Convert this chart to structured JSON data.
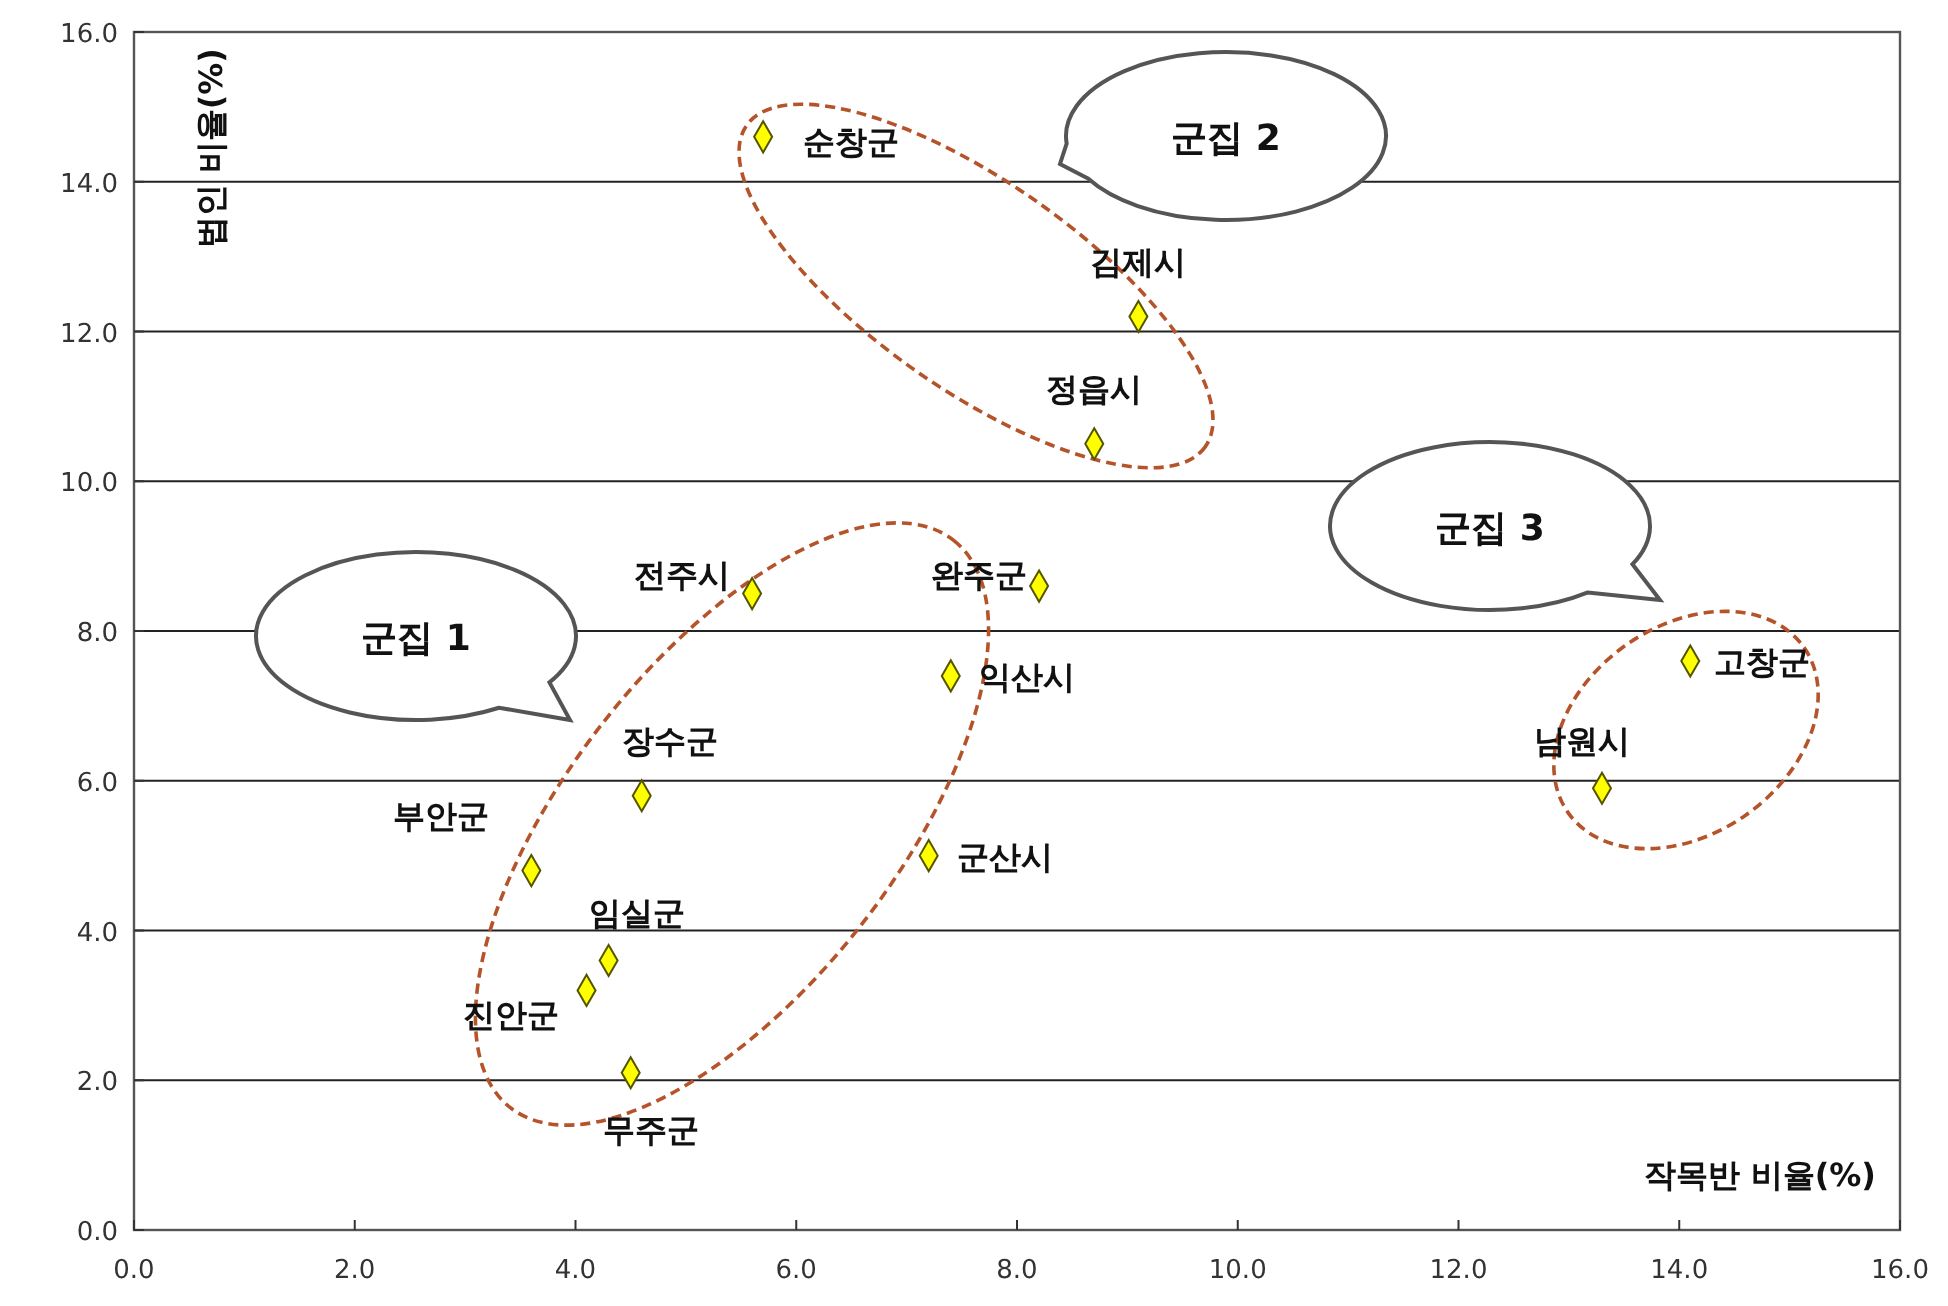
{
  "chart_data": {
    "type": "scatter",
    "xlabel": "작목반 비율(%)",
    "ylabel": "법인 비율(%)",
    "xlim": [
      0,
      16
    ],
    "ylim": [
      0,
      16
    ],
    "xticks": [
      {
        "value": 0,
        "label": "0.0"
      },
      {
        "value": 2,
        "label": "2.0"
      },
      {
        "value": 4,
        "label": "4.0"
      },
      {
        "value": 6,
        "label": "6.0"
      },
      {
        "value": 8,
        "label": "8.0"
      },
      {
        "value": 10,
        "label": "10.0"
      },
      {
        "value": 12,
        "label": "12.0"
      },
      {
        "value": 14,
        "label": "14.0"
      },
      {
        "value": 16,
        "label": "16.0"
      }
    ],
    "yticks": [
      {
        "value": 0,
        "label": "0.0"
      },
      {
        "value": 2,
        "label": "2.0"
      },
      {
        "value": 4,
        "label": "4.0"
      },
      {
        "value": 6,
        "label": "6.0"
      },
      {
        "value": 8,
        "label": "8.0"
      },
      {
        "value": 10,
        "label": "10.0"
      },
      {
        "value": 12,
        "label": "12.0"
      },
      {
        "value": 14,
        "label": "14.0"
      },
      {
        "value": 16,
        "label": "16.0"
      }
    ],
    "grid": "y",
    "marker": "diamond",
    "series": [
      {
        "color": "#ffff00",
        "x": [
          5.7,
          9.1,
          8.7,
          5.6,
          8.2,
          7.4,
          4.6,
          3.6,
          7.2,
          4.3,
          4.1,
          4.5,
          14.1,
          13.3
        ],
        "values": [
          14.6,
          12.2,
          10.5,
          8.5,
          8.6,
          7.4,
          5.8,
          4.8,
          5.0,
          3.6,
          3.2,
          2.1,
          7.6,
          5.9
        ]
      }
    ],
    "annotations": [
      {
        "text": "순창군",
        "x": 5.7,
        "y": 14.6
      },
      {
        "text": "김제시",
        "x": 9.1,
        "y": 12.2
      },
      {
        "text": "정읍시",
        "x": 8.7,
        "y": 10.5
      },
      {
        "text": "전주시",
        "x": 5.6,
        "y": 8.5
      },
      {
        "text": "완주군",
        "x": 8.2,
        "y": 8.6
      },
      {
        "text": "익산시",
        "x": 7.4,
        "y": 7.4
      },
      {
        "text": "장수군",
        "x": 4.6,
        "y": 5.8
      },
      {
        "text": "부안군",
        "x": 3.6,
        "y": 4.8
      },
      {
        "text": "군산시",
        "x": 7.2,
        "y": 5.0
      },
      {
        "text": "임실군",
        "x": 4.3,
        "y": 3.6
      },
      {
        "text": "진안군",
        "x": 4.1,
        "y": 3.2
      },
      {
        "text": "무주군",
        "x": 4.5,
        "y": 2.1
      },
      {
        "text": "고창군",
        "x": 14.1,
        "y": 7.6
      },
      {
        "text": "남원시",
        "x": 13.3,
        "y": 5.9
      },
      "군집 1",
      "군집 2",
      "군집 3"
    ]
  }
}
